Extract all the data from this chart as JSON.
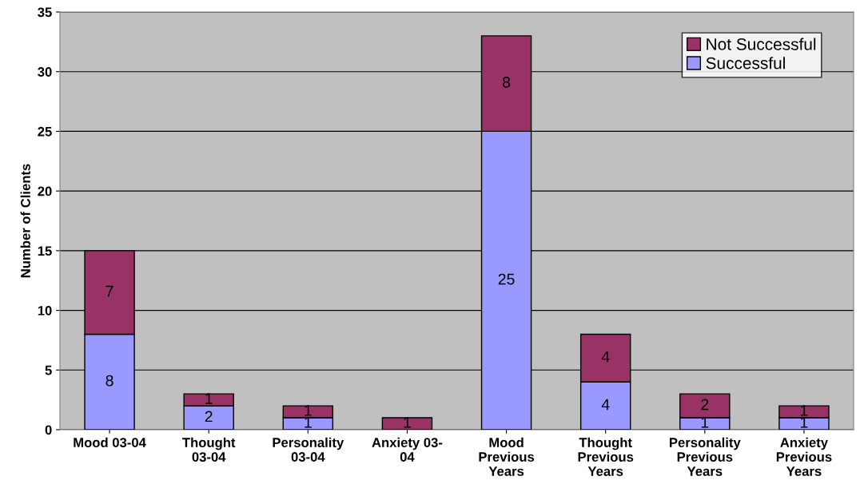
{
  "chart_data": {
    "type": "bar",
    "stacked": true,
    "ylabel": "Number of Clients",
    "categories": [
      "Mood 03-04",
      "Thought\n03-04",
      "Personality\n03-04",
      "Anxiety 03-\n04",
      "Mood\nPrevious\nYears",
      "Thought\nPrevious\nYears",
      "Personality\nPrevious\nYears",
      "Anxiety\nPrevious\nYears"
    ],
    "series": [
      {
        "name": "Successful",
        "color": "#9999ff",
        "values": [
          8,
          2,
          1,
          0,
          25,
          4,
          1,
          1
        ],
        "value_labels": [
          "8",
          "2",
          "1",
          null,
          "25",
          "4",
          "1",
          "1"
        ]
      },
      {
        "name": "Not Successful",
        "color": "#993366",
        "values": [
          7,
          1,
          1,
          1,
          8,
          4,
          2,
          1
        ],
        "value_labels": [
          "7",
          "1",
          "1",
          "1",
          "8",
          "4",
          "2",
          "1"
        ]
      }
    ],
    "ylim": [
      0,
      35
    ],
    "yticks": [
      0,
      5,
      10,
      15,
      20,
      25,
      30,
      35
    ],
    "grid": "y",
    "legend": "top right"
  }
}
